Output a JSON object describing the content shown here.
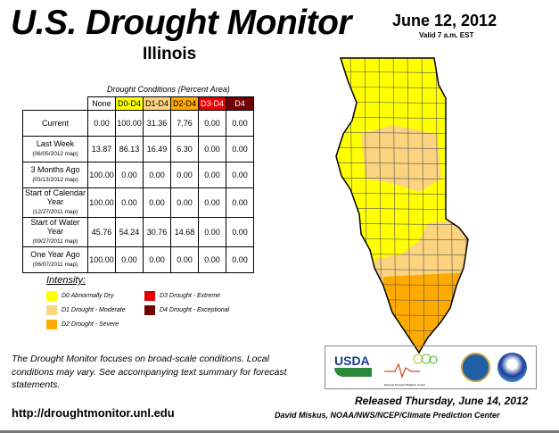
{
  "header": {
    "title": "U.S. Drought Monitor",
    "state": "Illinois",
    "date": "June 12, 2012",
    "valid": "Valid 7 a.m. EST"
  },
  "table": {
    "caption": "Drought Conditions (Percent Area)",
    "columns": [
      "None",
      "D0-D4",
      "D1-D4",
      "D2-D4",
      "D3-D4",
      "D4"
    ],
    "column_colors": [
      "#ffffff",
      "#ffff00",
      "#fcd37f",
      "#ffaa00",
      "#e60000",
      "#730000"
    ],
    "rows": [
      {
        "label": "Current",
        "sub": "",
        "values": [
          "0.00",
          "100.00",
          "31.36",
          "7.76",
          "0.00",
          "0.00"
        ]
      },
      {
        "label": "Last Week",
        "sub": "(06/05/2012 map)",
        "values": [
          "13.87",
          "86.13",
          "16.49",
          "6.30",
          "0.00",
          "0.00"
        ]
      },
      {
        "label": "3 Months Ago",
        "sub": "(03/13/2012 map)",
        "values": [
          "100.00",
          "0.00",
          "0.00",
          "0.00",
          "0.00",
          "0.00"
        ]
      },
      {
        "label": "Start of Calendar Year",
        "sub": "(12/27/2011 map)",
        "values": [
          "100.00",
          "0.00",
          "0.00",
          "0.00",
          "0.00",
          "0.00"
        ]
      },
      {
        "label": "Start of Water Year",
        "sub": "(09/27/2011 map)",
        "values": [
          "45.76",
          "54.24",
          "30.76",
          "14.68",
          "0.00",
          "0.00"
        ]
      },
      {
        "label": "One Year Ago",
        "sub": "(06/07/2011 map)",
        "values": [
          "100.00",
          "0.00",
          "0.00",
          "0.00",
          "0.00",
          "0.00"
        ]
      }
    ]
  },
  "legend": {
    "title": "Intensity:",
    "items": [
      {
        "label": "D0 Abnormally Dry",
        "color": "#ffff00"
      },
      {
        "label": "D1 Drought - Moderate",
        "color": "#fcd37f"
      },
      {
        "label": "D2 Drought - Severe",
        "color": "#ffaa00"
      },
      {
        "label": "D3 Drought - Extreme",
        "color": "#e60000"
      },
      {
        "label": "D4 Drought - Exceptional",
        "color": "#730000"
      }
    ]
  },
  "footer": {
    "note": "The Drought Monitor focuses on broad-scale conditions. Local conditions may vary. See accompanying text summary for forecast statements.",
    "url": "http://droughtmonitor.unl.edu",
    "released": "Released Thursday, June 14, 2012",
    "author": "David Miskus, NOAA/NWS/NCEP/Climate Prediction Center",
    "logos": {
      "usda": "USDA",
      "ndmc": "National Drought Mitigation Center",
      "noaa": "NOAA"
    }
  }
}
